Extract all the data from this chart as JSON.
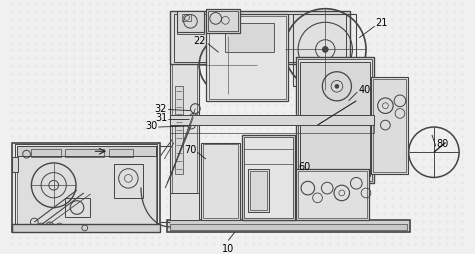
{
  "bg_color": "#f0f0f0",
  "line_color": "#444444",
  "dark_line": "#222222",
  "figsize": [
    4.75,
    2.55
  ],
  "dpi": 100
}
